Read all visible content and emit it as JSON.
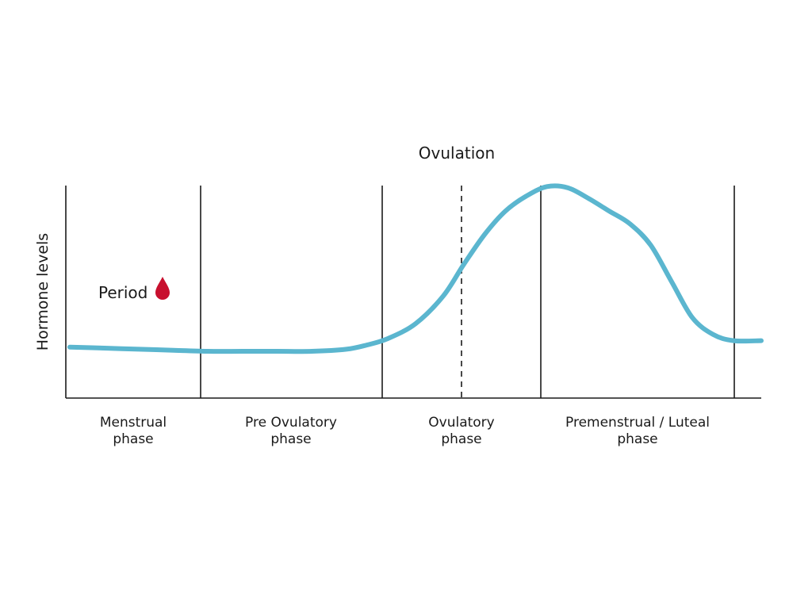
{
  "chart_data": {
    "type": "line",
    "ylabel": "Hormone levels",
    "xlabel": "",
    "title": "",
    "grid": false,
    "legend": "none",
    "phases": [
      {
        "label_line1": "Menstrual",
        "label_line2": "phase"
      },
      {
        "label_line1": "Pre Ovulatory",
        "label_line2": "phase"
      },
      {
        "label_line1": "Ovulatory",
        "label_line2": "phase"
      },
      {
        "label_line1": "Premenstrual / Luteal",
        "label_line2": "phase"
      }
    ],
    "annotations": {
      "ovulation": "Ovulation",
      "period": "Period"
    },
    "series": [
      {
        "color": "#5bb6cf",
        "x": [
          0,
          0.05,
          0.1,
          0.15,
          0.2,
          0.25,
          0.3,
          0.35,
          0.4,
          0.43,
          0.46,
          0.5,
          0.54,
          0.57,
          0.6,
          0.63,
          0.66,
          0.69,
          0.72,
          0.75,
          0.78,
          0.81,
          0.84,
          0.87,
          0.9,
          0.93,
          0.96,
          1.0
        ],
        "y": [
          0.24,
          0.235,
          0.23,
          0.225,
          0.22,
          0.22,
          0.22,
          0.22,
          0.23,
          0.25,
          0.28,
          0.35,
          0.48,
          0.63,
          0.77,
          0.88,
          0.95,
          0.995,
          0.99,
          0.94,
          0.88,
          0.82,
          0.72,
          0.55,
          0.38,
          0.3,
          0.27,
          0.27
        ]
      }
    ],
    "drop_color": "#c8102e"
  }
}
